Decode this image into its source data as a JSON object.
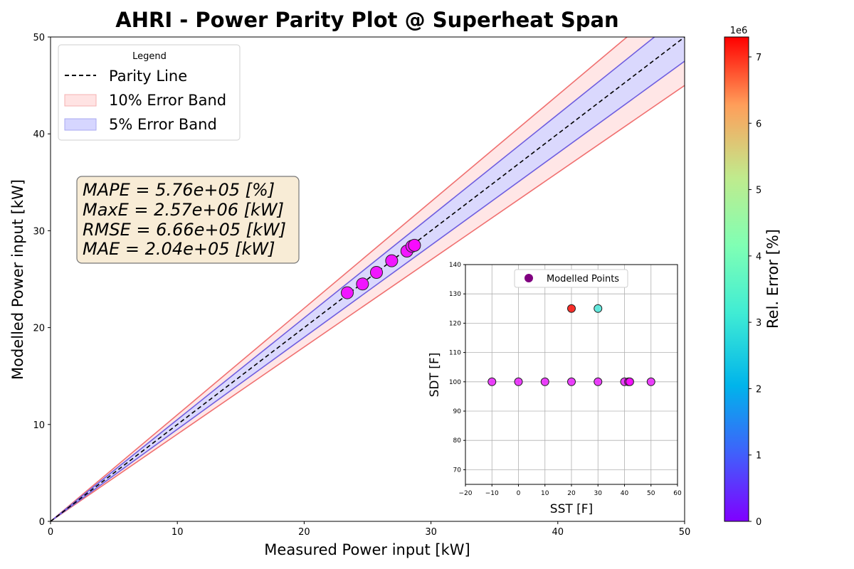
{
  "chart_data": [
    {
      "type": "scatter",
      "title": "AHRI - Power Parity Plot @ Superheat Span",
      "xlabel": "Measured Power input [kW]",
      "ylabel": "Modelled Power input [kW]",
      "xlim": [
        0,
        50
      ],
      "ylim": [
        0,
        50
      ],
      "xticks": [
        "0",
        "10",
        "20",
        "30",
        "40",
        "50"
      ],
      "yticks": [
        "0",
        "10",
        "20",
        "30",
        "40",
        "50"
      ],
      "grid": false,
      "legend": {
        "title": "Legend",
        "placement": "top-left",
        "entries": [
          "Parity Line",
          "10% Error Band",
          "5% Error Band"
        ]
      },
      "bands": [
        {
          "name": "10% Error Band",
          "lower_factor": 0.9,
          "upper_factor": 1.1,
          "fill": "#ffe3e3",
          "edge": "#f07070"
        },
        {
          "name": "5% Error Band",
          "lower_factor": 0.95,
          "upper_factor": 1.05,
          "fill": "#d6d6ff",
          "edge": "#6f5ee0"
        }
      ],
      "parity_line": {
        "name": "Parity Line",
        "from": [
          0,
          0
        ],
        "to": [
          50,
          50
        ]
      },
      "stats_box": [
        "MAPE = 5.76e+05 [%]",
        "MaxE = 2.57e+06 [kW]",
        "RMSE = 6.66e+05 [kW]",
        "MAE = 2.04e+05 [kW]"
      ],
      "points": [
        {
          "x": 23.4,
          "y": 23.6,
          "rel_error": 0.2
        },
        {
          "x": 24.6,
          "y": 24.5,
          "rel_error": 0.2
        },
        {
          "x": 25.7,
          "y": 25.7,
          "rel_error": 0.2
        },
        {
          "x": 26.9,
          "y": 26.9,
          "rel_error": 0.2
        },
        {
          "x": 28.1,
          "y": 27.9,
          "rel_error": 0.2
        },
        {
          "x": 28.5,
          "y": 28.4,
          "rel_error": 0.2
        },
        {
          "x": 28.7,
          "y": 28.5,
          "rel_error": 0.1
        }
      ],
      "colorbar": {
        "label": "Rel. Error [%]",
        "multiplier": "1e6",
        "min": 0,
        "max": 7.3,
        "ticks": [
          "0",
          "1",
          "2",
          "3",
          "4",
          "5",
          "6",
          "7"
        ],
        "colormap": "rainbow"
      }
    },
    {
      "type": "scatter",
      "xlabel": "SST [F]",
      "ylabel": "SDT [F]",
      "xlim": [
        -20,
        60
      ],
      "ylim": [
        65,
        140
      ],
      "xticks": [
        "−20",
        "−10",
        "0",
        "10",
        "20",
        "30",
        "40",
        "50",
        "60"
      ],
      "yticks": [
        "70",
        "80",
        "90",
        "100",
        "110",
        "120",
        "130",
        "140"
      ],
      "grid": true,
      "legend": {
        "placement": "top-center",
        "entries": [
          "Modelled Points"
        ],
        "marker_color": "#800080"
      },
      "points": [
        {
          "x": -10,
          "y": 100,
          "rel_error": 0.3
        },
        {
          "x": 0,
          "y": 100,
          "rel_error": 0.3
        },
        {
          "x": 10,
          "y": 100,
          "rel_error": 0.3
        },
        {
          "x": 20,
          "y": 100,
          "rel_error": 0.3
        },
        {
          "x": 30,
          "y": 100,
          "rel_error": 0.3
        },
        {
          "x": 40,
          "y": 100,
          "rel_error": 0.3
        },
        {
          "x": 41.5,
          "y": 100,
          "rel_error": 0.1
        },
        {
          "x": 42,
          "y": 100,
          "rel_error": 0.1
        },
        {
          "x": 50,
          "y": 100,
          "rel_error": 0.3
        },
        {
          "x": 20,
          "y": 125,
          "rel_error": 7.2
        },
        {
          "x": 30,
          "y": 125,
          "rel_error": 2.6
        }
      ]
    }
  ]
}
